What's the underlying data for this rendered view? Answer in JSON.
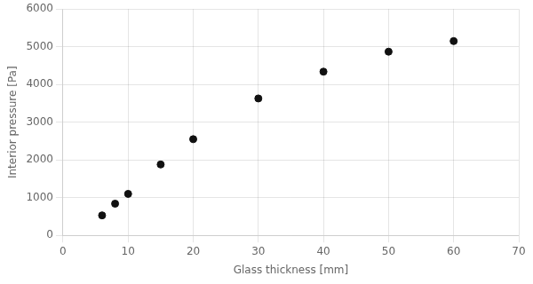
{
  "chart_data": {
    "type": "scatter",
    "x": [
      6,
      8,
      10,
      15,
      20,
      30,
      40,
      50,
      60
    ],
    "values": [
      530,
      840,
      1100,
      1880,
      2550,
      3630,
      4340,
      4870,
      5150
    ],
    "xlabel": "Glass thickness [mm]",
    "ylabel": "Interior pressure [Pa]",
    "xlim": [
      0,
      70
    ],
    "ylim": [
      0,
      6000
    ],
    "xticks": [
      0,
      10,
      20,
      30,
      40,
      50,
      60,
      70
    ],
    "yticks": [
      0,
      1000,
      2000,
      3000,
      4000,
      5000,
      6000
    ],
    "color": "#111111",
    "marker": "circle",
    "grid": true
  }
}
